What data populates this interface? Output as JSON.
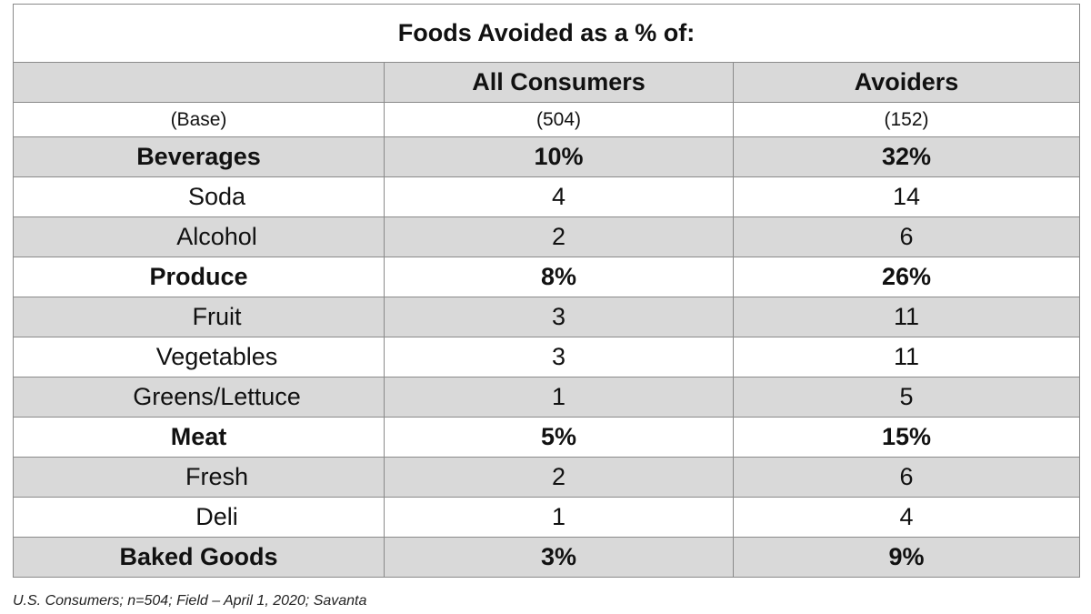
{
  "chart_data": {
    "type": "table",
    "title": "Foods Avoided as a % of:",
    "columns": [
      "",
      "All Consumers",
      "Avoiders"
    ],
    "base": {
      "label": "(Base)",
      "values": [
        "(504)",
        "(152)"
      ]
    },
    "rows": [
      {
        "label": "Beverages",
        "kind": "category",
        "values": [
          "10%",
          "32%"
        ]
      },
      {
        "label": "Soda",
        "kind": "sub",
        "values": [
          "4",
          "14"
        ]
      },
      {
        "label": "Alcohol",
        "kind": "sub",
        "values": [
          "2",
          "6"
        ]
      },
      {
        "label": "Produce",
        "kind": "category",
        "values": [
          "8%",
          "26%"
        ]
      },
      {
        "label": "Fruit",
        "kind": "sub",
        "values": [
          "3",
          "11"
        ]
      },
      {
        "label": "Vegetables",
        "kind": "sub",
        "values": [
          "3",
          "11"
        ]
      },
      {
        "label": "Greens/Lettuce",
        "kind": "sub",
        "values": [
          "1",
          "5"
        ]
      },
      {
        "label": "Meat",
        "kind": "category",
        "values": [
          "5%",
          "15%"
        ]
      },
      {
        "label": "Fresh",
        "kind": "sub",
        "values": [
          "2",
          "6"
        ]
      },
      {
        "label": "Deli",
        "kind": "sub",
        "values": [
          "1",
          "4"
        ]
      },
      {
        "label": "Baked Goods",
        "kind": "category",
        "values": [
          "3%",
          "9%"
        ]
      }
    ],
    "shading": [
      "grey",
      "white",
      "grey",
      "white",
      "grey",
      "white",
      "grey",
      "white",
      "grey",
      "white",
      "grey"
    ],
    "colors": {
      "shaded_row": "#d9d9d9",
      "border": "#8a8a8a"
    }
  },
  "footnote": "U.S. Consumers; n=504; Field – April 1, 2020; Savanta"
}
